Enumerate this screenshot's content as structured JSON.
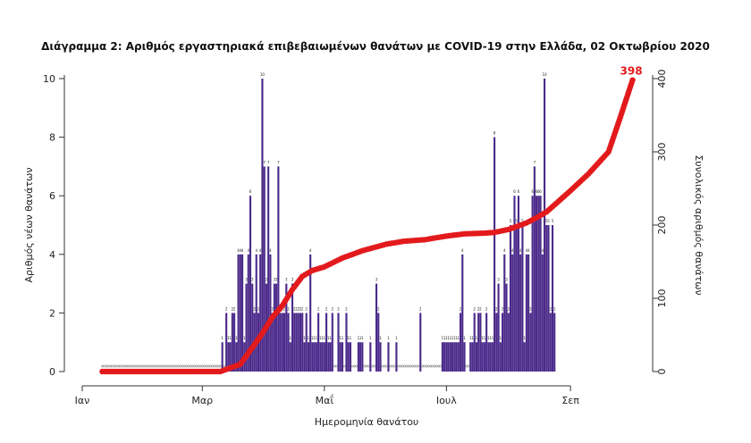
{
  "chart_data": {
    "type": "bar",
    "title": "Διάγραμμα 2: Αριθμός εργαστηριακά επιβεβαιωμένων θανάτων με COVID-19 στην Ελλάδα, 02 Οκτωβρίου 2020",
    "xlabel": "Ημερομηνία θανάτου",
    "ylabel_left": "Αριθμός νέων θανάτων",
    "ylabel_right": "Συνολικός αριθμός θανάτων",
    "x_tick_labels": [
      "Ιαν",
      "Μαρ",
      "Μαΐ",
      "Ιουλ",
      "Σεπ"
    ],
    "x_tick_dates": [
      "2020-01-01",
      "2020-03-01",
      "2020-05-01",
      "2020-07-01",
      "2020-09-01"
    ],
    "x_range": [
      "2020-01-01",
      "2020-10-04"
    ],
    "ylim_left": [
      0,
      10
    ],
    "yticks_left": [
      0,
      2,
      4,
      6,
      8,
      10
    ],
    "ylim_right": [
      0,
      400
    ],
    "yticks_right": [
      0,
      100,
      200,
      300,
      400
    ],
    "final_cumulative_label": "398",
    "colors": {
      "bars": "#4b2a8a",
      "cumulative": "#e31a1c",
      "zero_markers": "#888888"
    },
    "series": [
      {
        "type": "bar",
        "axis": "left",
        "x_start": "2020-03-11",
        "values": [
          1,
          0,
          2,
          1,
          1,
          2,
          2,
          1,
          4,
          4,
          4,
          1,
          3,
          4,
          6,
          3,
          2,
          4,
          2,
          4,
          10,
          7,
          3,
          7,
          4,
          2,
          3,
          3,
          7,
          2,
          2,
          2,
          3,
          2,
          1,
          3,
          2,
          2,
          2,
          2,
          2,
          1,
          2,
          1,
          4,
          1,
          1,
          1,
          2,
          1,
          1,
          1,
          2,
          1,
          1,
          2,
          0,
          0,
          2,
          1,
          1,
          0,
          2,
          1,
          1,
          0,
          0,
          0,
          1,
          1,
          1,
          0,
          0,
          0,
          1,
          0,
          0,
          3,
          2,
          1,
          0,
          0,
          0,
          1,
          0,
          0,
          0,
          1,
          0,
          0,
          0,
          0,
          0,
          0,
          0,
          0,
          0,
          0,
          0,
          2,
          0,
          0,
          0,
          0,
          0,
          0,
          0,
          0,
          0,
          0,
          1,
          1,
          1,
          1,
          1,
          1,
          1,
          1,
          1,
          2,
          4,
          1,
          0,
          0,
          1,
          1,
          2,
          1,
          2,
          2,
          1,
          1,
          2,
          1,
          1,
          1,
          8,
          2,
          3,
          1,
          2,
          4,
          3,
          2,
          5,
          4,
          6,
          5,
          6,
          4,
          5,
          1,
          4,
          4,
          2,
          6,
          7,
          6,
          6,
          6,
          4,
          10,
          5,
          5,
          2,
          5,
          2
        ],
        "labels": [
          "1",
          "",
          "2",
          "1",
          "1",
          "2",
          "2",
          "1",
          "4",
          "4",
          "4",
          "1",
          "3",
          "4",
          "6",
          "3",
          "2",
          "4",
          "2",
          "4",
          "10",
          "7",
          "3",
          "7",
          "4",
          "2",
          "3",
          "3",
          "7",
          "2",
          "2",
          "2",
          "3",
          "2",
          "1",
          "3",
          "2",
          "2",
          "2",
          "2",
          "2",
          "1",
          "2",
          "1",
          "4",
          "1",
          "1",
          "1",
          "2",
          "1",
          "1",
          "1",
          "2",
          "1",
          "1",
          "2",
          "",
          "",
          "2",
          "1",
          "1",
          "",
          "2",
          "1",
          "1",
          "",
          "",
          "",
          "1",
          "1",
          "1",
          "",
          "",
          "",
          "1",
          "",
          "",
          "3",
          "2",
          "1",
          "",
          "",
          "",
          "1",
          "",
          "",
          "",
          "1",
          "",
          "",
          "",
          "",
          "",
          "",
          "",
          "",
          "",
          "",
          "",
          "2",
          "",
          "",
          "",
          "",
          "",
          "",
          "",
          "",
          "",
          "",
          "1",
          "1",
          "1",
          "1",
          "1",
          "1",
          "1",
          "1",
          "1",
          "2",
          "4",
          "1",
          "",
          "",
          "1",
          "1",
          "2",
          "1",
          "2",
          "2",
          "1",
          "1",
          "2",
          "1",
          "1",
          "1",
          "8",
          "2",
          "3",
          "1",
          "2",
          "4",
          "3",
          "2",
          "5",
          "4",
          "6",
          "5",
          "6",
          "4",
          "5",
          "1",
          "4",
          "4",
          "2",
          "6",
          "7",
          "6",
          "6",
          "6",
          "4",
          "10",
          "5",
          "5",
          "2",
          "5",
          "2"
        ]
      },
      {
        "type": "line",
        "axis": "right",
        "name": "",
        "dates": [
          "2020-01-01",
          "2020-03-10",
          "2020-03-20",
          "2020-03-30",
          "2020-04-05",
          "2020-04-10",
          "2020-04-15",
          "2020-04-20",
          "2020-04-25",
          "2020-05-01",
          "2020-05-10",
          "2020-05-20",
          "2020-06-01",
          "2020-06-10",
          "2020-06-20",
          "2020-07-01",
          "2020-07-10",
          "2020-07-20",
          "2020-07-25",
          "2020-08-01",
          "2020-08-10",
          "2020-08-15",
          "2020-08-20",
          "2020-08-25",
          "2020-09-01",
          "2020-09-10",
          "2020-09-20",
          "2020-09-25",
          "2020-10-02"
        ],
        "values": [
          0,
          0,
          10,
          48,
          74,
          90,
          112,
          130,
          138,
          143,
          155,
          165,
          174,
          178,
          180,
          185,
          188,
          189,
          190,
          194,
          203,
          210,
          218,
          230,
          247,
          270,
          300,
          340,
          398
        ]
      }
    ]
  }
}
